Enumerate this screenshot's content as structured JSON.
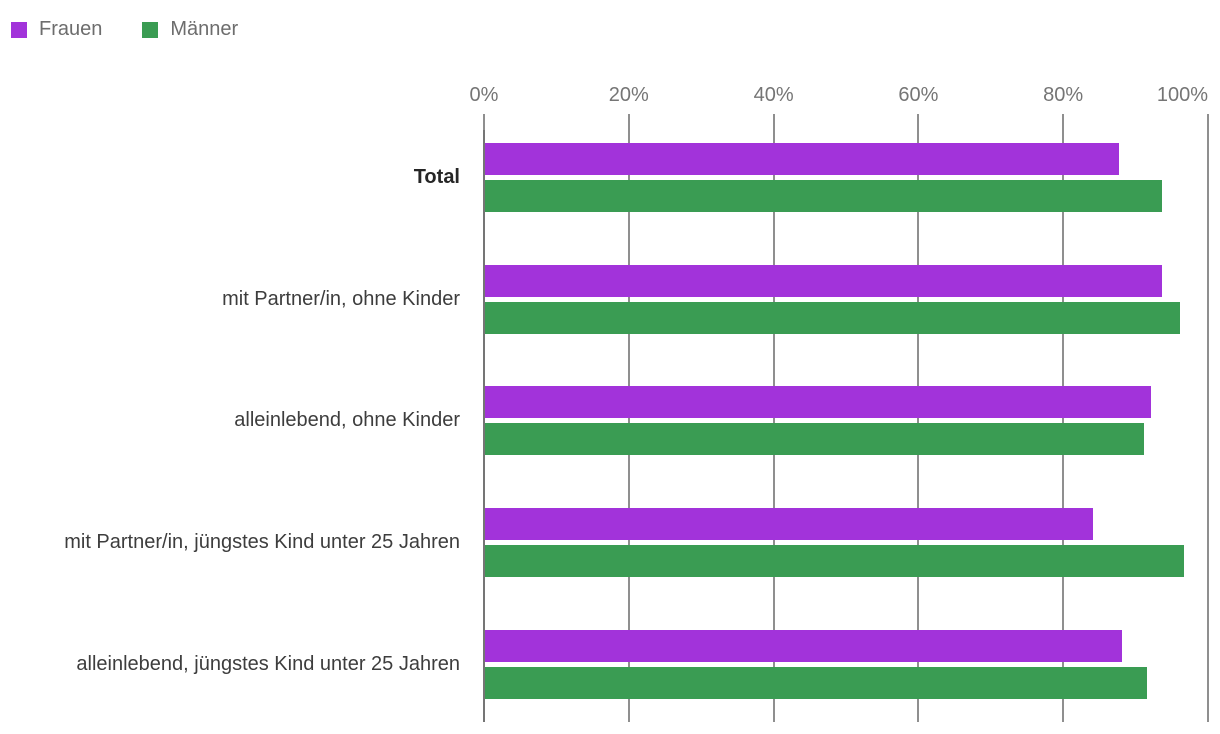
{
  "legend": {
    "items": [
      {
        "label": "Frauen",
        "color": "#a233da"
      },
      {
        "label": "Männer",
        "color": "#3a9c53"
      }
    ]
  },
  "chart_data": {
    "type": "bar",
    "orientation": "horizontal",
    "title": "",
    "xlabel": "",
    "ylabel": "",
    "categories": [
      "Total",
      "mit Partner/in, ohne Kinder",
      "alleinlebend, ohne Kinder",
      "mit Partner/in, jüngstes Kind unter 25 Jahren",
      "alleinlebend, jüngstes Kind unter 25 Jahren"
    ],
    "emphasized_category": "Total",
    "series": [
      {
        "name": "Frauen",
        "color": "#a233da",
        "values": [
          87.5,
          93.5,
          92,
          84,
          88
        ]
      },
      {
        "name": "Männer",
        "color": "#3a9c53",
        "values": [
          93.5,
          96,
          91,
          96.5,
          91.5
        ]
      }
    ],
    "x_axis": {
      "range": [
        0,
        100
      ],
      "tick_values": [
        0,
        20,
        40,
        60,
        80,
        100
      ],
      "tick_labels": [
        "0%",
        "20%",
        "40%",
        "60%",
        "80%",
        "100%"
      ],
      "unit": "%"
    },
    "grid": true,
    "legend_position": "top-left"
  }
}
